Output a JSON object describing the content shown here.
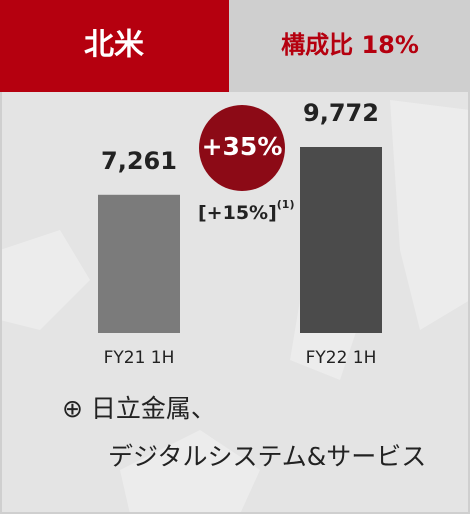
{
  "chart_data": {
    "type": "bar",
    "title": "北米",
    "share": "構成比 18%",
    "categories": [
      "FY21 1H",
      "FY22 1H"
    ],
    "values": [
      7261,
      9772
    ],
    "value_labels": [
      "7,261",
      "9,772"
    ],
    "colors": [
      "#7b7b7b",
      "#4b4b4b"
    ],
    "growth": "+35%",
    "organic_growth": "[+15%]",
    "footnote_ref": "(1)",
    "notes": [
      "⊕ 日立金属、",
      "デジタルシステム&サービス"
    ]
  }
}
